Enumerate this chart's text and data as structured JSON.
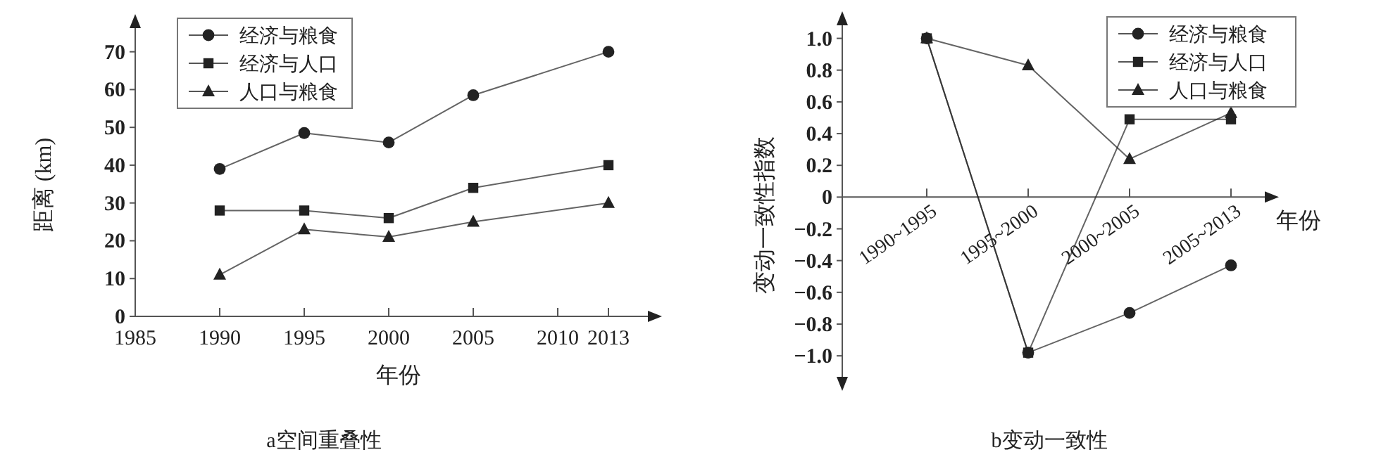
{
  "chart_data": [
    {
      "type": "line",
      "title": "a空间重叠性",
      "xlabel": "年份",
      "ylabel": "距离 (km)",
      "x": [
        1990,
        1995,
        2000,
        2005,
        2013
      ],
      "xlim": [
        1985,
        2015.5
      ],
      "xticks": [
        1985,
        1990,
        1995,
        2000,
        2005,
        2010,
        2013
      ],
      "ylim": [
        0,
        77
      ],
      "yticks": [
        0,
        10,
        20,
        30,
        40,
        50,
        60,
        70
      ],
      "legend": "top left",
      "grid": false,
      "series": [
        {
          "name": "经济与粮食",
          "color": "#222222",
          "marker": "circle",
          "values": [
            39,
            48.5,
            46,
            58.5,
            70
          ]
        },
        {
          "name": "经济与人口",
          "color": "#222222",
          "marker": "square",
          "values": [
            28,
            28,
            26,
            34,
            40
          ]
        },
        {
          "name": "人口与粮食",
          "color": "#222222",
          "marker": "triangle",
          "values": [
            11,
            23,
            21,
            25,
            30
          ]
        }
      ]
    },
    {
      "type": "line",
      "title": "b变动一致性",
      "xlabel": "年份",
      "ylabel": "变动一致性指数",
      "categories": [
        "1990~1995",
        "1995~2000",
        "2000~2005",
        "2005~2013"
      ],
      "ylim": [
        -1.15,
        1.1
      ],
      "yticks": [
        {
          "value": 1,
          "label": "1.0"
        },
        0.8,
        0.6,
        0.4,
        0.2,
        0,
        {
          "value": -0.2,
          "label": "−0.2"
        },
        {
          "value": -0.4,
          "label": "−0.4"
        },
        {
          "value": -0.6,
          "label": "−0.6"
        },
        {
          "value": -0.8,
          "label": "−0.8"
        },
        {
          "value": -1,
          "label": "−1.0"
        }
      ],
      "legend": "top right",
      "grid": false,
      "series": [
        {
          "name": "经济与粮食",
          "color": "#222222",
          "marker": "circle",
          "values": [
            1,
            -0.98,
            -0.73,
            -0.43
          ]
        },
        {
          "name": "经济与人口",
          "color": "#222222",
          "marker": "square",
          "values": [
            1,
            -0.98,
            0.49,
            0.49
          ]
        },
        {
          "name": "人口与粮食",
          "color": "#222222",
          "marker": "triangle",
          "values": [
            1,
            0.83,
            0.24,
            0.53
          ]
        }
      ]
    }
  ]
}
